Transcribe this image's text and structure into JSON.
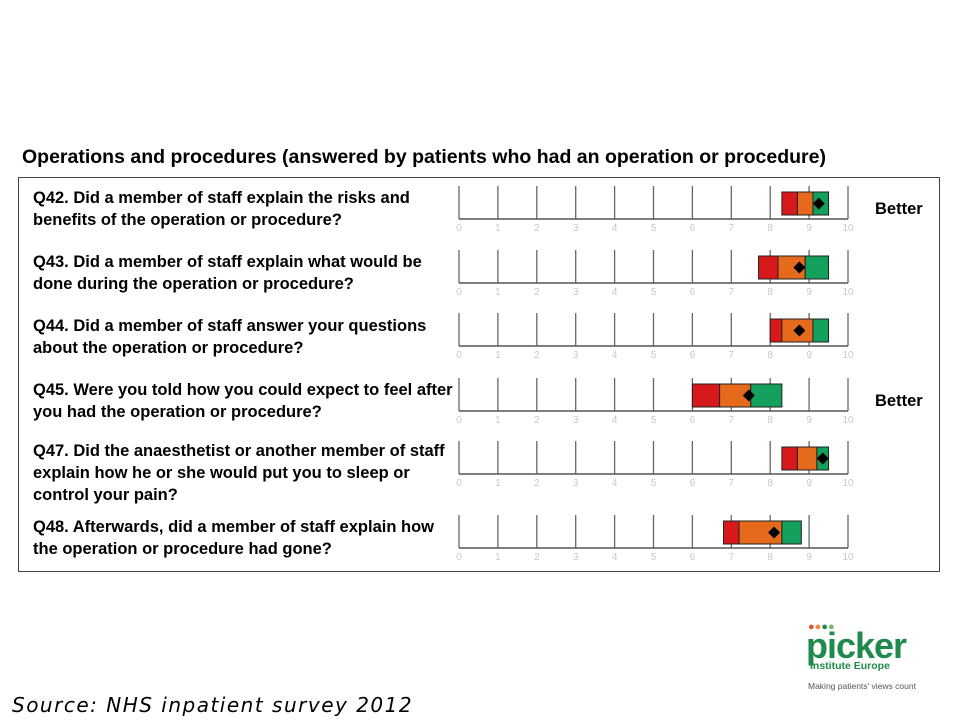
{
  "chart_data": {
    "type": "range_band",
    "title": "Operations and procedures (answered by patients who had an operation or procedure)",
    "xlim": [
      0,
      10
    ],
    "ticks": [
      "0",
      "1",
      "2",
      "3",
      "4",
      "5",
      "6",
      "7",
      "8",
      "9",
      "10"
    ],
    "band_colors": {
      "red": "#d7191c",
      "orange": "#e66a1c",
      "green": "#12a05c",
      "marker": "#000000"
    },
    "rows": [
      {
        "question": "Q42. Did a member of staff explain the risks and benefits of the operation or procedure?",
        "red": [
          8.3,
          8.7
        ],
        "orange": [
          8.7,
          9.1
        ],
        "green": [
          9.1,
          9.5
        ],
        "score": 9.25,
        "flag": "Better"
      },
      {
        "question": "Q43. Did a member of staff explain what would be done during the operation or procedure?",
        "red": [
          7.7,
          8.2
        ],
        "orange": [
          8.2,
          8.9
        ],
        "green": [
          8.9,
          9.5
        ],
        "score": 8.75,
        "flag": ""
      },
      {
        "question": "Q44. Did a member of staff answer your questions about the operation or procedure?",
        "red": [
          8.0,
          8.3
        ],
        "orange": [
          8.3,
          9.1
        ],
        "green": [
          9.1,
          9.5
        ],
        "score": 8.75,
        "flag": ""
      },
      {
        "question": "Q45. Were you told how you could expect to feel after you had the operation or procedure?",
        "red": [
          6.0,
          6.7
        ],
        "orange": [
          6.7,
          7.5
        ],
        "green": [
          7.5,
          8.3
        ],
        "score": 7.45,
        "flag": "Better"
      },
      {
        "question": "Q47. Did the anaesthetist or another member of staff explain how he or she would put you to sleep or control your pain?",
        "red": [
          8.3,
          8.7
        ],
        "orange": [
          8.7,
          9.2
        ],
        "green": [
          9.2,
          9.5
        ],
        "score": 9.35,
        "flag": ""
      },
      {
        "question": "Q48. Afterwards, did a member of staff explain how the operation or procedure had gone?",
        "red": [
          6.8,
          7.2
        ],
        "orange": [
          7.2,
          8.3
        ],
        "green": [
          8.3,
          8.8
        ],
        "score": 8.1,
        "flag": ""
      }
    ]
  },
  "source": "Source: NHS inpatient survey 2012",
  "logo": {
    "word": "picker",
    "subtitle": "Institute Europe",
    "tagline": "Making patients' views count",
    "dots": "oooo"
  }
}
